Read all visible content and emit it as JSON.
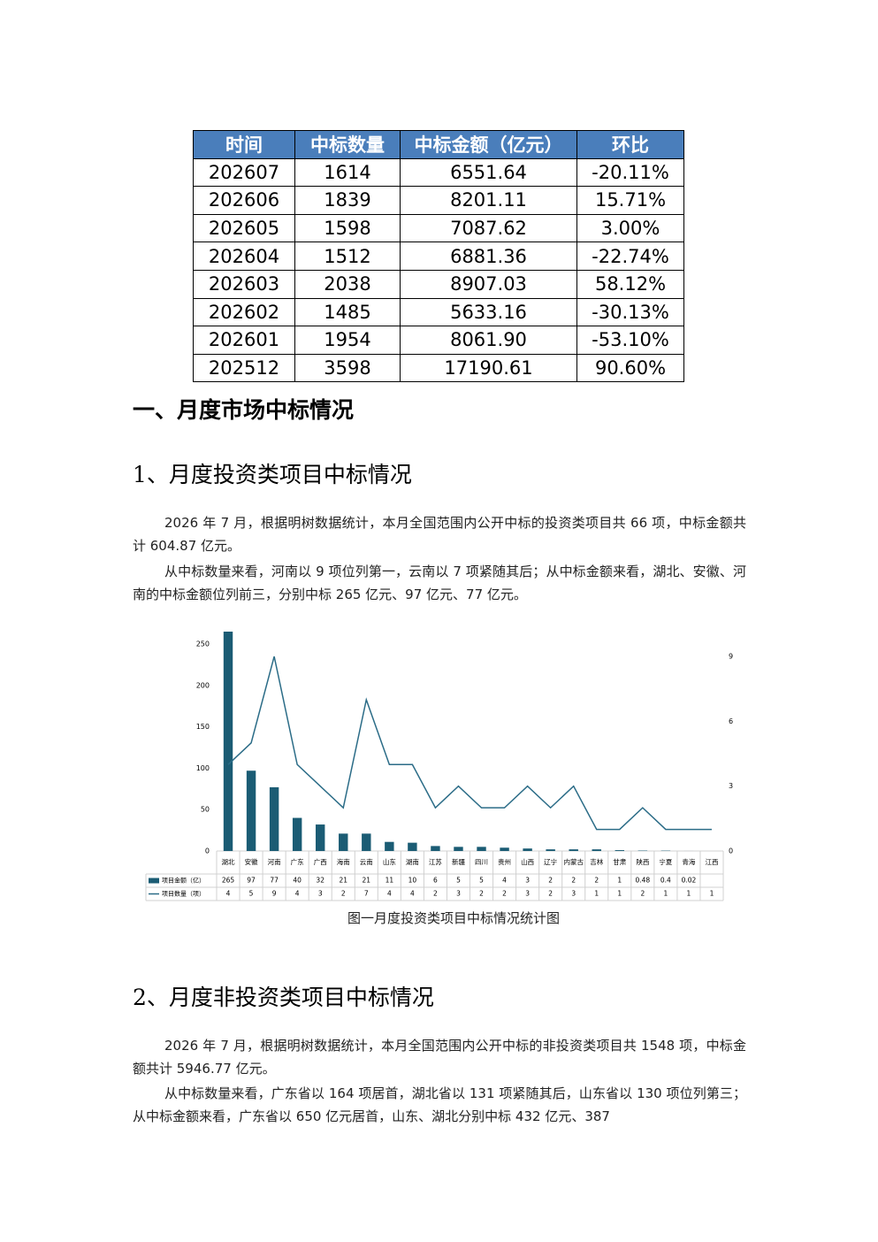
{
  "table": {
    "header": [
      "时间",
      "中标数量",
      "中标金额（亿元）",
      "环比"
    ],
    "rows": [
      [
        "202607",
        "1614",
        "6551.64",
        "-20.11%"
      ],
      [
        "202606",
        "1839",
        "8201.11",
        "15.71%"
      ],
      [
        "202605",
        "1598",
        "7087.62",
        "3.00%"
      ],
      [
        "202604",
        "1512",
        "6881.36",
        "-22.74%"
      ],
      [
        "202603",
        "2038",
        "8907.03",
        "58.12%"
      ],
      [
        "202602",
        "1485",
        "5633.16",
        "-30.13%"
      ],
      [
        "202601",
        "1954",
        "8061.90",
        "-53.10%"
      ],
      [
        "202512",
        "3598",
        "17190.61",
        "90.60%"
      ]
    ]
  },
  "section_title": "一、月度市场中标情况",
  "heading1": "1、月度投资类项目中标情况",
  "paragraphs1": [
    "2026 年 7 月，根据明树数据统计，本月全国范围内公开中标的投资类项目共 66 项，中标金额共计 604.87 亿元。",
    "从中标数量来看，河南以 9 项位列第一，云南以 7 项紧随其后；从中标金额来看，湖北、安徽、河南的中标金额位列前三，分别中标 265 亿元、97 亿元、77 亿元。"
  ],
  "chart_data": {
    "type": "bar",
    "categories": [
      "湖北",
      "安徽",
      "河南",
      "广东",
      "广西",
      "海南",
      "云南",
      "山东",
      "湖南",
      "江苏",
      "新疆",
      "四川",
      "贵州",
      "山西",
      "辽宁",
      "内蒙古",
      "吉林",
      "甘肃",
      "陕西",
      "宁夏",
      "青海",
      "江西"
    ],
    "series": [
      {
        "name": "项目金额（亿）",
        "type": "bar",
        "color": "#1b5c74",
        "values": [
          265,
          97,
          77,
          40,
          32,
          21,
          21,
          11,
          10,
          6,
          5,
          5,
          4,
          3,
          2,
          2,
          2,
          1,
          0.48,
          0.4,
          0.02,
          null
        ]
      },
      {
        "name": "项目数量（项）",
        "type": "line",
        "axis": "y2",
        "color": "#2b6c87",
        "values": [
          4,
          5,
          9,
          4,
          3,
          2,
          7,
          4,
          4,
          2,
          3,
          2,
          2,
          3,
          2,
          3,
          1,
          1,
          2,
          1,
          1,
          1
        ]
      }
    ],
    "ylim": [
      0,
      265
    ],
    "yticks": [
      0,
      50,
      100,
      150,
      200,
      250
    ],
    "y2lim": [
      0,
      10.15
    ],
    "y2ticks": [
      0,
      3,
      6,
      9
    ],
    "grid": false
  },
  "caption": "图一月度投资类项目中标情况统计图",
  "heading2": "2、月度非投资类项目中标情况",
  "paragraphs2": [
    "2026 年 7 月，根据明树数据统计，本月全国范围内公开中标的非投资类项目共 1548 项，中标金额共计 5946.77 亿元。",
    "从中标数量来看，广东省以 164 项居首，湖北省以 131 项紧随其后，山东省以 130 项位列第三；从中标金额来看，广东省以 650 亿元居首，山东、湖北分别中标 432 亿元、387"
  ]
}
